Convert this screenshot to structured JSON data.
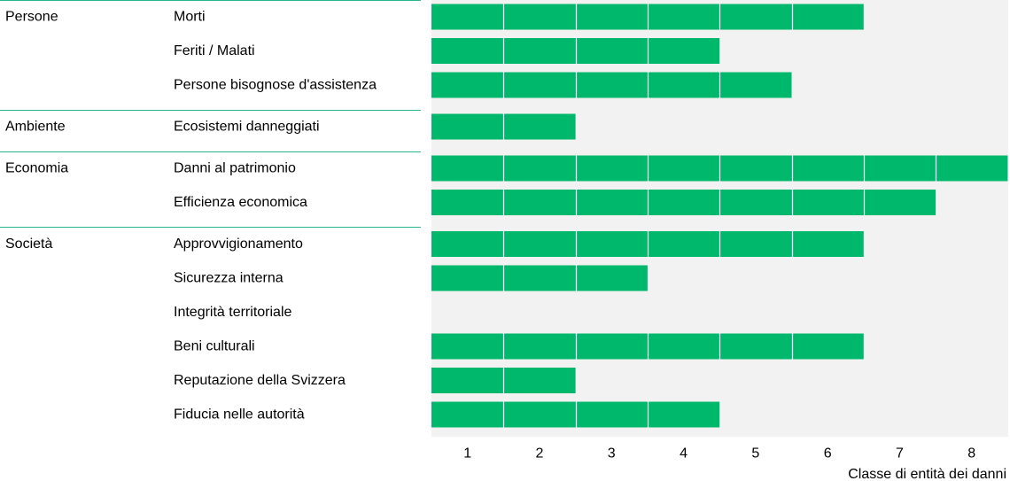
{
  "chart_data": {
    "type": "bar",
    "orientation": "horizontal",
    "xlabel": "Classe di entità dei danni",
    "xlim": [
      0,
      8
    ],
    "xticks": [
      "1",
      "2",
      "3",
      "4",
      "5",
      "6",
      "7",
      "8"
    ],
    "bar_color": "#00b86b",
    "plot_background": "#f2f2f2",
    "separator_color": "#2bb58e",
    "groups": [
      {
        "name": "Persone",
        "categories": [
          {
            "label": "Morti",
            "value": 6
          },
          {
            "label": "Feriti / Malati",
            "value": 4
          },
          {
            "label": "Persone bisognose d'assistenza",
            "value": 5
          }
        ]
      },
      {
        "name": "Ambiente",
        "categories": [
          {
            "label": "Ecosistemi danneggiati",
            "value": 2
          }
        ]
      },
      {
        "name": "Economia",
        "categories": [
          {
            "label": "Danni al patrimonio",
            "value": 8
          },
          {
            "label": "Efficienza economica",
            "value": 7
          }
        ]
      },
      {
        "name": "Società",
        "categories": [
          {
            "label": "Approvvigionamento",
            "value": 6
          },
          {
            "label": "Sicurezza interna",
            "value": 3
          },
          {
            "label": "Integrità territoriale",
            "value": 0
          },
          {
            "label": "Beni culturali",
            "value": 6
          },
          {
            "label": "Reputazione della Svizzera",
            "value": 2
          },
          {
            "label": "Fiducia nelle autorità",
            "value": 4
          }
        ]
      }
    ]
  }
}
